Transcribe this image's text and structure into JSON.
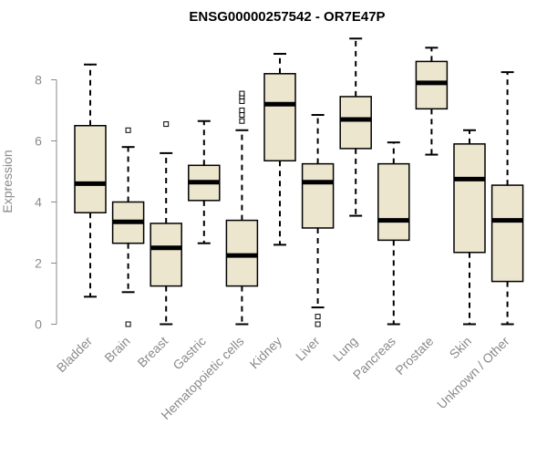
{
  "chart_data": {
    "type": "boxplot",
    "title": "ENSG00000257542 - OR7E47P",
    "xlabel": "",
    "ylabel": "Expression",
    "ylim": [
      0,
      9.4
    ],
    "yticks": [
      0,
      2,
      4,
      6,
      8
    ],
    "box_color": "#ede6cf",
    "categories": [
      "Bladder",
      "Brain",
      "Breast",
      "Gastric",
      "Hematopoietic cells",
      "Kidney",
      "Liver",
      "Lung",
      "Pancreas",
      "Prostate",
      "Skin",
      "Unknown / Other"
    ],
    "boxes": [
      {
        "category": "Bladder",
        "whisker_low": 0.9,
        "q1": 3.65,
        "median": 4.6,
        "q3": 6.5,
        "whisker_high": 8.5,
        "outliers": []
      },
      {
        "category": "Brain",
        "whisker_low": 1.05,
        "q1": 2.65,
        "median": 3.35,
        "q3": 4.0,
        "whisker_high": 5.8,
        "outliers": [
          6.35,
          0.0
        ]
      },
      {
        "category": "Breast",
        "whisker_low": 0.0,
        "q1": 1.25,
        "median": 2.5,
        "q3": 3.3,
        "whisker_high": 5.6,
        "outliers": [
          6.55
        ]
      },
      {
        "category": "Gastric",
        "whisker_low": 2.65,
        "q1": 4.05,
        "median": 4.65,
        "q3": 5.2,
        "whisker_high": 6.65,
        "outliers": []
      },
      {
        "category": "Hematopoietic cells",
        "whisker_low": 0.0,
        "q1": 1.25,
        "median": 2.25,
        "q3": 3.4,
        "whisker_high": 6.35,
        "outliers": [
          6.65,
          6.85,
          7.0,
          7.3,
          7.45,
          7.55
        ]
      },
      {
        "category": "Kidney",
        "whisker_low": 2.6,
        "q1": 5.35,
        "median": 7.2,
        "q3": 8.2,
        "whisker_high": 8.85,
        "outliers": []
      },
      {
        "category": "Liver",
        "whisker_low": 0.55,
        "q1": 3.15,
        "median": 4.65,
        "q3": 5.25,
        "whisker_high": 6.85,
        "outliers": [
          0.25,
          0.0
        ]
      },
      {
        "category": "Lung",
        "whisker_low": 3.55,
        "q1": 5.75,
        "median": 6.7,
        "q3": 7.45,
        "whisker_high": 9.35,
        "outliers": []
      },
      {
        "category": "Pancreas",
        "whisker_low": 0.0,
        "q1": 2.75,
        "median": 3.4,
        "q3": 5.25,
        "whisker_high": 5.95,
        "outliers": []
      },
      {
        "category": "Prostate",
        "whisker_low": 5.55,
        "q1": 7.05,
        "median": 7.9,
        "q3": 8.6,
        "whisker_high": 9.05,
        "outliers": []
      },
      {
        "category": "Skin",
        "whisker_low": 0.0,
        "q1": 2.35,
        "median": 4.75,
        "q3": 5.9,
        "whisker_high": 6.35,
        "outliers": []
      },
      {
        "category": "Unknown / Other",
        "whisker_low": 0.0,
        "q1": 1.4,
        "median": 3.4,
        "q3": 4.55,
        "whisker_high": 8.25,
        "outliers": []
      }
    ]
  }
}
